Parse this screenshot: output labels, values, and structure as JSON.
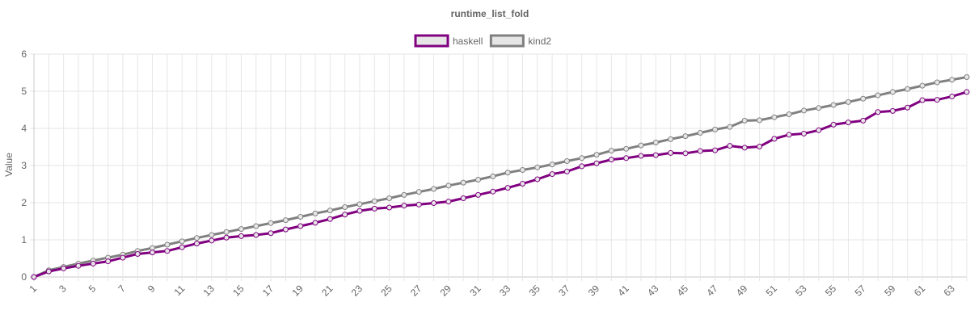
{
  "chart_data": {
    "type": "line",
    "title": "runtime_list_fold",
    "xlabel": "",
    "ylabel": "Value",
    "ylim": [
      0,
      6
    ],
    "y_ticks": [
      "0",
      "1",
      "2",
      "3",
      "4",
      "5",
      "6"
    ],
    "x": [
      1,
      2,
      3,
      4,
      5,
      6,
      7,
      8,
      9,
      10,
      11,
      12,
      13,
      14,
      15,
      16,
      17,
      18,
      19,
      20,
      21,
      22,
      23,
      24,
      25,
      26,
      27,
      28,
      29,
      30,
      31,
      32,
      33,
      34,
      35,
      36,
      37,
      38,
      39,
      40,
      41,
      42,
      43,
      44,
      45,
      46,
      47,
      48,
      49,
      50,
      51,
      52,
      53,
      54,
      55,
      56,
      57,
      58,
      59,
      60,
      61,
      62,
      63,
      64
    ],
    "x_tick_labels_shown": [
      "1",
      "3",
      "5",
      "7",
      "9",
      "11",
      "13",
      "15",
      "17",
      "19",
      "21",
      "23",
      "25",
      "27",
      "29",
      "31",
      "33",
      "35",
      "37",
      "39",
      "41",
      "43",
      "45",
      "47",
      "49",
      "51",
      "53",
      "55",
      "57",
      "59",
      "61",
      "63"
    ],
    "grid": true,
    "legend_position": "top-center",
    "series": [
      {
        "name": "haskell",
        "color": "#800080",
        "values": [
          0.0,
          0.15,
          0.23,
          0.3,
          0.36,
          0.42,
          0.52,
          0.62,
          0.66,
          0.7,
          0.8,
          0.9,
          0.98,
          1.06,
          1.1,
          1.13,
          1.18,
          1.28,
          1.37,
          1.46,
          1.56,
          1.68,
          1.78,
          1.84,
          1.87,
          1.92,
          1.95,
          1.99,
          2.03,
          2.12,
          2.21,
          2.3,
          2.4,
          2.51,
          2.63,
          2.77,
          2.84,
          2.98,
          3.06,
          3.16,
          3.2,
          3.26,
          3.28,
          3.34,
          3.33,
          3.39,
          3.41,
          3.53,
          3.48,
          3.51,
          3.72,
          3.83,
          3.86,
          3.95,
          4.1,
          4.16,
          4.21,
          4.44,
          4.47,
          4.56,
          4.76,
          4.77,
          4.86,
          4.98
        ]
      },
      {
        "name": "kind2",
        "color": "#808080",
        "values": [
          0.0,
          0.18,
          0.27,
          0.36,
          0.44,
          0.52,
          0.6,
          0.7,
          0.78,
          0.87,
          0.96,
          1.05,
          1.13,
          1.21,
          1.29,
          1.37,
          1.45,
          1.53,
          1.62,
          1.71,
          1.79,
          1.88,
          1.96,
          2.04,
          2.12,
          2.21,
          2.29,
          2.37,
          2.46,
          2.54,
          2.62,
          2.71,
          2.81,
          2.88,
          2.95,
          3.03,
          3.12,
          3.2,
          3.29,
          3.4,
          3.45,
          3.54,
          3.62,
          3.71,
          3.79,
          3.88,
          3.97,
          4.04,
          4.21,
          4.22,
          4.3,
          4.38,
          4.48,
          4.55,
          4.63,
          4.71,
          4.8,
          4.89,
          4.98,
          5.06,
          5.15,
          5.24,
          5.31,
          5.38
        ]
      }
    ]
  }
}
